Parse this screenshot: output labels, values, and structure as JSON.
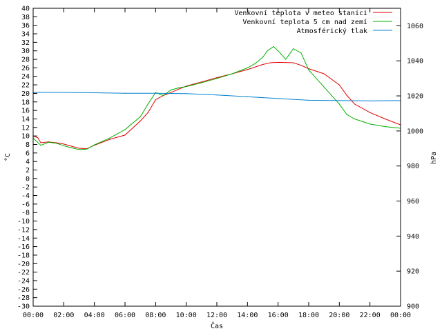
{
  "chart_data": {
    "type": "line",
    "xlabel": "Čas",
    "ylabel": "°C",
    "y2label": "hPa",
    "ylim": [
      -30,
      40
    ],
    "y2lim": [
      900,
      1070
    ],
    "xlim": [
      0,
      24
    ],
    "x_ticks": [
      "00:00",
      "02:00",
      "04:00",
      "06:00",
      "08:00",
      "10:00",
      "12:00",
      "14:00",
      "16:00",
      "18:00",
      "20:00",
      "22:00",
      "00:00"
    ],
    "y_ticks": [
      40,
      38,
      36,
      34,
      32,
      30,
      28,
      26,
      24,
      22,
      20,
      18,
      16,
      14,
      12,
      10,
      8,
      6,
      4,
      2,
      0,
      -2,
      -4,
      -6,
      -8,
      -10,
      -12,
      -14,
      -16,
      -18,
      -20,
      -22,
      -24,
      -26,
      -28,
      -30
    ],
    "y2_ticks": [
      1060,
      1040,
      1020,
      1000,
      980,
      960,
      940,
      920,
      900
    ],
    "legend_position": "top-right",
    "grid": false,
    "series": [
      {
        "name": "Venkovní teplota v meteo stanici",
        "axis": "left",
        "color": "#e00000",
        "x": [
          0,
          0.3,
          0.5,
          1,
          1.5,
          2,
          2.5,
          3,
          3.5,
          4,
          5,
          6,
          7,
          7.5,
          8,
          8.5,
          9,
          9.5,
          10,
          11,
          12,
          13,
          14,
          15,
          15.5,
          16,
          17,
          17.5,
          18,
          19,
          20,
          20.5,
          21,
          22,
          23,
          24
        ],
        "values": [
          10,
          9.6,
          8.4,
          8.6,
          8.4,
          8.1,
          7.6,
          7.1,
          7.0,
          7.8,
          9.2,
          10.2,
          13.5,
          15.5,
          18.5,
          19.5,
          20.2,
          21.0,
          21.7,
          22.7,
          23.7,
          24.6,
          25.6,
          26.8,
          27.2,
          27.3,
          27.2,
          26.6,
          25.8,
          24.6,
          22.0,
          19.5,
          17.5,
          15.5,
          14.0,
          12.6
        ]
      },
      {
        "name": "Venkovní teplota 5 cm nad zemí",
        "axis": "left",
        "color": "#00b000",
        "x": [
          0,
          0.3,
          0.5,
          1,
          1.5,
          2,
          2.5,
          3,
          3.5,
          4,
          5,
          6,
          7,
          7.5,
          8,
          8.5,
          9,
          9.5,
          10,
          11,
          12,
          13,
          14,
          14.5,
          15,
          15.3,
          15.7,
          16,
          16.5,
          17,
          17.5,
          18,
          19,
          20,
          20.5,
          21,
          22,
          23,
          24
        ],
        "values": [
          9.5,
          8.5,
          7.8,
          8.5,
          8.3,
          7.7,
          7.2,
          6.8,
          6.9,
          7.9,
          9.5,
          11.5,
          14.5,
          17.5,
          20.2,
          19.5,
          20.8,
          21.3,
          21.6,
          22.5,
          23.5,
          24.6,
          26.0,
          27.0,
          28.5,
          30.0,
          31.0,
          30.0,
          28.0,
          30.5,
          29.5,
          25.5,
          21.5,
          17.5,
          15.0,
          14.0,
          12.8,
          12.2,
          11.8
        ]
      },
      {
        "name": "Atmosférický tlak",
        "axis": "right",
        "color": "#0080d0",
        "x": [
          0,
          2,
          4,
          6,
          8,
          10,
          12,
          14,
          16,
          18,
          20,
          22,
          24
        ],
        "values": [
          1022.0,
          1022.0,
          1021.8,
          1021.5,
          1021.5,
          1021.3,
          1020.5,
          1019.5,
          1018.5,
          1017.5,
          1017.3,
          1017.2,
          1017.3
        ]
      }
    ]
  }
}
